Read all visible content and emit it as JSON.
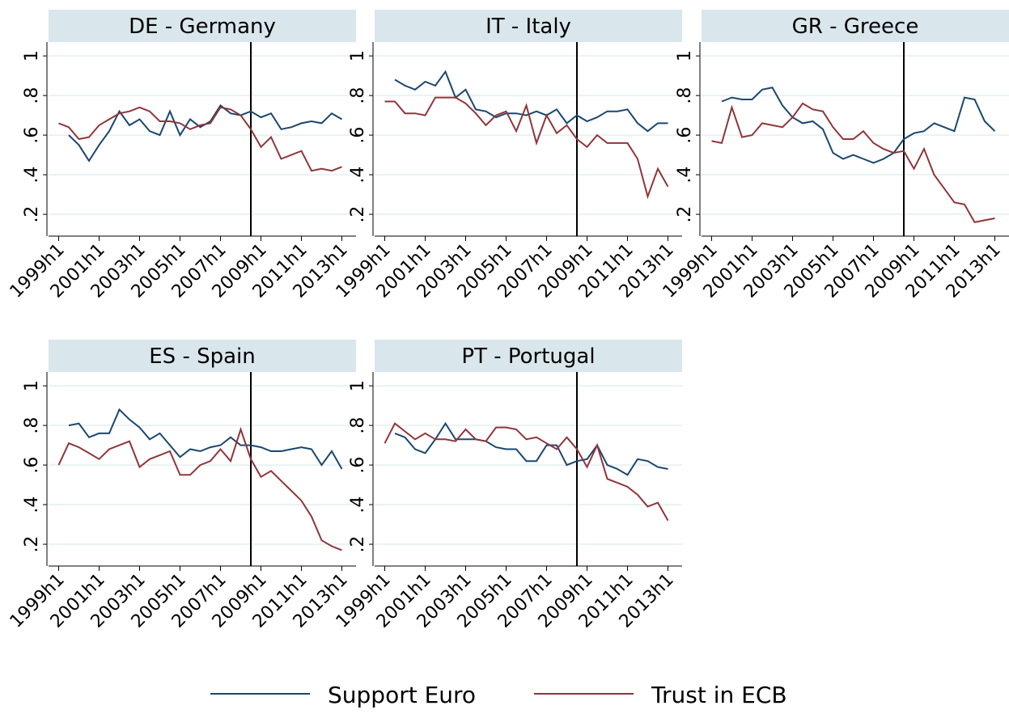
{
  "chart_data": [
    {
      "type": "line",
      "title": "DE - Germany",
      "grid": true,
      "vline": 2008.5,
      "x": [
        1999,
        1999.5,
        2000,
        2000.5,
        2001,
        2001.5,
        2002,
        2002.5,
        2003,
        2003.5,
        2004,
        2004.5,
        2005,
        2005.5,
        2006,
        2006.5,
        2007,
        2007.5,
        2008,
        2008.5,
        2009,
        2009.5,
        2010,
        2010.5,
        2011,
        2011.5,
        2012,
        2012.5,
        2013
      ],
      "xlim": [
        1998.5,
        2013.7
      ],
      "ylim": [
        0.09,
        1.07
      ],
      "xticks": [
        {
          "value": 1999,
          "label": "1999h1"
        },
        {
          "value": 2001,
          "label": "2001h1"
        },
        {
          "value": 2003,
          "label": "2003h1"
        },
        {
          "value": 2005,
          "label": "2005h1"
        },
        {
          "value": 2007,
          "label": "2007h1"
        },
        {
          "value": 2009,
          "label": "2009h1"
        },
        {
          "value": 2011,
          "label": "2011h1"
        },
        {
          "value": 2013,
          "label": "2013h1"
        }
      ],
      "yticks": [
        {
          "value": 0.2,
          "label": ".2"
        },
        {
          "value": 0.4,
          "label": ".4"
        },
        {
          "value": 0.6,
          "label": ".6"
        },
        {
          "value": 0.8,
          "label": ".8"
        },
        1
      ],
      "series": [
        {
          "name": "Support Euro",
          "color": "#1a476f",
          "values": [
            null,
            0.6,
            0.55,
            0.47,
            0.55,
            0.62,
            0.72,
            0.65,
            0.68,
            0.62,
            0.6,
            0.72,
            0.6,
            0.68,
            0.64,
            0.67,
            0.75,
            0.71,
            0.7,
            0.72,
            0.69,
            0.71,
            0.63,
            0.64,
            0.66,
            0.67,
            0.66,
            0.71,
            0.68
          ]
        },
        {
          "name": "Trust in ECB",
          "color": "#90353b",
          "values": [
            0.66,
            0.64,
            0.58,
            0.59,
            0.65,
            0.68,
            0.71,
            0.72,
            0.74,
            0.72,
            0.67,
            0.67,
            0.66,
            0.63,
            0.65,
            0.66,
            0.74,
            0.73,
            0.7,
            0.63,
            0.54,
            0.59,
            0.48,
            0.5,
            0.52,
            0.42,
            0.43,
            0.42,
            0.44
          ]
        }
      ]
    },
    {
      "type": "line",
      "title": "IT - Italy",
      "grid": true,
      "vline": 2008.5,
      "x": [
        1999,
        1999.5,
        2000,
        2000.5,
        2001,
        2001.5,
        2002,
        2002.5,
        2003,
        2003.5,
        2004,
        2004.5,
        2005,
        2005.5,
        2006,
        2006.5,
        2007,
        2007.5,
        2008,
        2008.5,
        2009,
        2009.5,
        2010,
        2010.5,
        2011,
        2011.5,
        2012,
        2012.5,
        2013
      ],
      "xlim": [
        1998.5,
        2013.7
      ],
      "ylim": [
        0.09,
        1.07
      ],
      "xticks": [
        {
          "value": 1999,
          "label": "1999h1"
        },
        {
          "value": 2001,
          "label": "2001h1"
        },
        {
          "value": 2003,
          "label": "2003h1"
        },
        {
          "value": 2005,
          "label": "2005h1"
        },
        {
          "value": 2007,
          "label": "2007h1"
        },
        {
          "value": 2009,
          "label": "2009h1"
        },
        {
          "value": 2011,
          "label": "2011h1"
        },
        {
          "value": 2013,
          "label": "2013h1"
        }
      ],
      "series": [
        {
          "name": "Support Euro",
          "color": "#1a476f",
          "values": [
            null,
            0.88,
            0.85,
            0.83,
            0.87,
            0.85,
            0.92,
            0.79,
            0.83,
            0.73,
            0.72,
            0.69,
            0.71,
            0.71,
            0.7,
            0.72,
            0.7,
            0.73,
            0.66,
            0.7,
            0.67,
            0.69,
            0.72,
            0.72,
            0.73,
            0.66,
            0.62,
            0.66,
            0.66
          ]
        },
        {
          "name": "Trust in ECB",
          "color": "#90353b",
          "values": [
            0.77,
            0.77,
            0.71,
            0.71,
            0.7,
            0.79,
            0.79,
            0.79,
            0.76,
            0.71,
            0.65,
            0.7,
            0.72,
            0.62,
            0.75,
            0.56,
            0.7,
            0.61,
            0.65,
            0.58,
            0.54,
            0.6,
            0.56,
            0.56,
            0.56,
            0.48,
            0.29,
            0.43,
            0.34
          ]
        }
      ]
    },
    {
      "type": "line",
      "title": "GR - Greece",
      "grid": true,
      "vline": 2008.5,
      "x": [
        1999,
        1999.5,
        2000,
        2000.5,
        2001,
        2001.5,
        2002,
        2002.5,
        2003,
        2003.5,
        2004,
        2004.5,
        2005,
        2005.5,
        2006,
        2006.5,
        2007,
        2007.5,
        2008,
        2008.5,
        2009,
        2009.5,
        2010,
        2010.5,
        2011,
        2011.5,
        2012,
        2012.5,
        2013
      ],
      "xlim": [
        1998.5,
        2013.7
      ],
      "ylim": [
        0.09,
        1.07
      ],
      "xticks": [
        {
          "value": 1999,
          "label": "1999h1"
        },
        {
          "value": 2001,
          "label": "2001h1"
        },
        {
          "value": 2003,
          "label": "2003h1"
        },
        {
          "value": 2005,
          "label": "2005h1"
        },
        {
          "value": 2007,
          "label": "2007h1"
        },
        {
          "value": 2009,
          "label": "2009h1"
        },
        {
          "value": 2011,
          "label": "2011h1"
        },
        {
          "value": 2013,
          "label": "2013h1"
        }
      ],
      "series": [
        {
          "name": "Support Euro",
          "color": "#1a476f",
          "values": [
            null,
            0.77,
            0.79,
            0.78,
            0.78,
            0.83,
            0.84,
            0.75,
            0.69,
            0.66,
            0.67,
            0.63,
            0.51,
            0.48,
            0.5,
            0.48,
            0.46,
            0.48,
            0.51,
            0.58,
            0.61,
            0.62,
            0.66,
            0.64,
            0.62,
            0.79,
            0.78,
            0.67,
            0.62
          ]
        },
        {
          "name": "Trust in ECB",
          "color": "#90353b",
          "values": [
            0.57,
            0.56,
            0.74,
            0.59,
            0.6,
            0.66,
            0.65,
            0.64,
            0.69,
            0.76,
            0.73,
            0.72,
            0.64,
            0.58,
            0.58,
            0.62,
            0.56,
            0.53,
            0.51,
            0.52,
            0.43,
            0.53,
            0.4,
            0.33,
            0.26,
            0.25,
            0.16,
            0.17,
            0.18
          ]
        }
      ]
    },
    {
      "type": "line",
      "title": "ES - Spain",
      "grid": true,
      "vline": 2008.5,
      "x": [
        1999,
        1999.5,
        2000,
        2000.5,
        2001,
        2001.5,
        2002,
        2002.5,
        2003,
        2003.5,
        2004,
        2004.5,
        2005,
        2005.5,
        2006,
        2006.5,
        2007,
        2007.5,
        2008,
        2008.5,
        2009,
        2009.5,
        2010,
        2010.5,
        2011,
        2011.5,
        2012,
        2012.5,
        2013
      ],
      "xlim": [
        1998.5,
        2013.7
      ],
      "ylim": [
        0.09,
        1.07
      ],
      "xticks": [
        {
          "value": 1999,
          "label": "1999h1"
        },
        {
          "value": 2001,
          "label": "2001h1"
        },
        {
          "value": 2003,
          "label": "2003h1"
        },
        {
          "value": 2005,
          "label": "2005h1"
        },
        {
          "value": 2007,
          "label": "2007h1"
        },
        {
          "value": 2009,
          "label": "2009h1"
        },
        {
          "value": 2011,
          "label": "2011h1"
        },
        {
          "value": 2013,
          "label": "2013h1"
        }
      ],
      "yticks": [
        {
          "value": 0.2,
          "label": ".2"
        },
        {
          "value": 0.4,
          "label": ".4"
        },
        {
          "value": 0.6,
          "label": ".6"
        },
        {
          "value": 0.8,
          "label": ".8"
        },
        1
      ],
      "series": [
        {
          "name": "Support Euro",
          "color": "#1a476f",
          "values": [
            null,
            0.8,
            0.81,
            0.74,
            0.76,
            0.76,
            0.88,
            0.83,
            0.79,
            0.73,
            0.76,
            0.7,
            0.64,
            0.68,
            0.67,
            0.69,
            0.7,
            0.74,
            0.7,
            0.7,
            0.69,
            0.67,
            0.67,
            0.68,
            0.69,
            0.68,
            0.6,
            0.67,
            0.58
          ]
        },
        {
          "name": "Trust in ECB",
          "color": "#90353b",
          "values": [
            0.6,
            0.71,
            0.69,
            0.66,
            0.63,
            0.68,
            0.7,
            0.72,
            0.59,
            0.63,
            0.65,
            0.67,
            0.55,
            0.55,
            0.6,
            0.62,
            0.68,
            0.62,
            0.78,
            0.63,
            0.54,
            0.57,
            0.52,
            0.47,
            0.42,
            0.34,
            0.22,
            0.19,
            0.17
          ]
        }
      ]
    },
    {
      "type": "line",
      "title": "PT - Portugal",
      "grid": true,
      "vline": 2008.5,
      "x": [
        1999,
        1999.5,
        2000,
        2000.5,
        2001,
        2001.5,
        2002,
        2002.5,
        2003,
        2003.5,
        2004,
        2004.5,
        2005,
        2005.5,
        2006,
        2006.5,
        2007,
        2007.5,
        2008,
        2008.5,
        2009,
        2009.5,
        2010,
        2010.5,
        2011,
        2011.5,
        2012,
        2012.5,
        2013
      ],
      "xlim": [
        1998.5,
        2013.7
      ],
      "ylim": [
        0.09,
        1.07
      ],
      "xticks": [
        {
          "value": 1999,
          "label": "1999h1"
        },
        {
          "value": 2001,
          "label": "2001h1"
        },
        {
          "value": 2003,
          "label": "2003h1"
        },
        {
          "value": 2005,
          "label": "2005h1"
        },
        {
          "value": 2007,
          "label": "2007h1"
        },
        {
          "value": 2009,
          "label": "2009h1"
        },
        {
          "value": 2011,
          "label": "2011h1"
        },
        {
          "value": 2013,
          "label": "2013h1"
        }
      ],
      "series": [
        {
          "name": "Support Euro",
          "color": "#1a476f",
          "values": [
            null,
            0.76,
            0.74,
            0.68,
            0.66,
            0.73,
            0.81,
            0.73,
            0.73,
            0.73,
            0.72,
            0.69,
            0.68,
            0.68,
            0.62,
            0.62,
            0.7,
            0.7,
            0.6,
            0.62,
            0.63,
            0.7,
            0.6,
            0.58,
            0.55,
            0.63,
            0.62,
            0.59,
            0.58
          ]
        },
        {
          "name": "Trust in ECB",
          "color": "#90353b",
          "values": [
            0.71,
            0.81,
            0.77,
            0.73,
            0.76,
            0.73,
            0.73,
            0.72,
            0.78,
            0.73,
            0.72,
            0.79,
            0.79,
            0.78,
            0.73,
            0.74,
            0.71,
            0.68,
            0.74,
            0.68,
            0.59,
            0.7,
            0.53,
            0.51,
            0.49,
            0.45,
            0.39,
            0.41,
            0.32
          ]
        }
      ]
    }
  ]
}
